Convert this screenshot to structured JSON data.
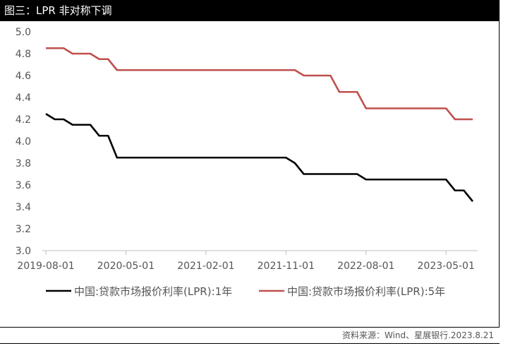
{
  "header": {
    "title": "图三：LPR 非对称下调"
  },
  "source": "资料来源：Wind、星展银行.2023.8.21",
  "colors": {
    "series_1y": "#000000",
    "series_5y": "#c0504d",
    "axis": "#bfbfbf"
  },
  "chart_data": {
    "type": "line",
    "title": "",
    "xlabel": "",
    "ylabel": "",
    "ylim": [
      3.0,
      5.0
    ],
    "y_ticks": [
      "3.0",
      "3.2",
      "3.4",
      "3.6",
      "3.8",
      "4.0",
      "4.2",
      "4.4",
      "4.6",
      "4.8",
      "5.0"
    ],
    "x_range": [
      "2019-08",
      "2023-08"
    ],
    "x_ticks": [
      "2019-08-01",
      "2020-05-01",
      "2021-02-01",
      "2021-11-01",
      "2022-08-01",
      "2023-05-01"
    ],
    "grid": false,
    "legend_position": "bottom",
    "series": [
      {
        "name": "中国:贷款市场报价利率(LPR):1年",
        "color": "#000000",
        "points": [
          [
            "2019-08",
            4.25
          ],
          [
            "2019-09",
            4.2
          ],
          [
            "2019-10",
            4.2
          ],
          [
            "2019-11",
            4.15
          ],
          [
            "2019-12",
            4.15
          ],
          [
            "2020-01",
            4.15
          ],
          [
            "2020-02",
            4.05
          ],
          [
            "2020-03",
            4.05
          ],
          [
            "2020-04",
            3.85
          ],
          [
            "2021-11",
            3.85
          ],
          [
            "2021-12",
            3.8
          ],
          [
            "2022-01",
            3.7
          ],
          [
            "2022-07",
            3.7
          ],
          [
            "2022-08",
            3.65
          ],
          [
            "2023-05",
            3.65
          ],
          [
            "2023-06",
            3.55
          ],
          [
            "2023-07",
            3.55
          ],
          [
            "2023-08",
            3.45
          ]
        ]
      },
      {
        "name": "中国:贷款市场报价利率(LPR):5年",
        "color": "#c0504d",
        "points": [
          [
            "2019-08",
            4.85
          ],
          [
            "2019-10",
            4.85
          ],
          [
            "2019-11",
            4.8
          ],
          [
            "2020-01",
            4.8
          ],
          [
            "2020-02",
            4.75
          ],
          [
            "2020-03",
            4.75
          ],
          [
            "2020-04",
            4.65
          ],
          [
            "2021-12",
            4.65
          ],
          [
            "2022-01",
            4.6
          ],
          [
            "2022-04",
            4.6
          ],
          [
            "2022-05",
            4.45
          ],
          [
            "2022-07",
            4.45
          ],
          [
            "2022-08",
            4.3
          ],
          [
            "2023-05",
            4.3
          ],
          [
            "2023-06",
            4.2
          ],
          [
            "2023-08",
            4.2
          ]
        ]
      }
    ]
  }
}
